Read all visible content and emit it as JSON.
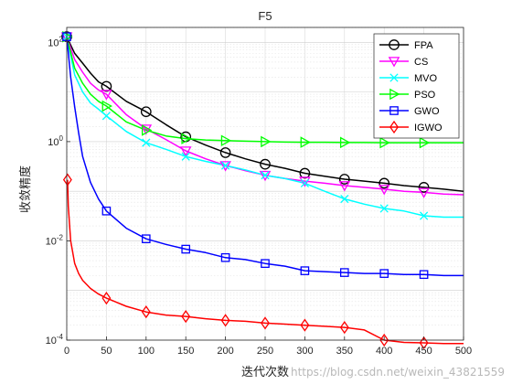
{
  "chart_data": {
    "type": "line",
    "title": "F5",
    "xlabel": "迭代次数",
    "ylabel": "收敛精度",
    "xlim": [
      0,
      500
    ],
    "ylim": [
      0.0001,
      200
    ],
    "yscale": "log",
    "grid": true,
    "legend_position": "top-right",
    "x_ticks": [
      "0",
      "50",
      "100",
      "150",
      "200",
      "250",
      "300",
      "350",
      "400",
      "450",
      "500"
    ],
    "y_ticks": [
      {
        "value": 100,
        "base": "10",
        "exp": "2"
      },
      {
        "value": 1,
        "base": "10",
        "exp": "0"
      },
      {
        "value": 0.01,
        "base": "10",
        "exp": "-2"
      },
      {
        "value": 0.0001,
        "base": "10",
        "exp": "-4"
      }
    ],
    "series": [
      {
        "name": "FPA",
        "color": "#000000",
        "marker": "circle",
        "x": [
          0,
          10,
          20,
          30,
          40,
          50,
          75,
          100,
          125,
          150,
          175,
          200,
          225,
          250,
          275,
          300,
          325,
          350,
          375,
          400,
          425,
          450,
          475,
          500
        ],
        "y": [
          130,
          60,
          38,
          24,
          16,
          13,
          6.5,
          4.0,
          2.2,
          1.25,
          0.85,
          0.6,
          0.45,
          0.35,
          0.29,
          0.23,
          0.2,
          0.175,
          0.16,
          0.145,
          0.13,
          0.12,
          0.11,
          0.1
        ]
      },
      {
        "name": "CS",
        "color": "#ff00ff",
        "marker": "triangle-down",
        "x": [
          0,
          10,
          20,
          30,
          40,
          50,
          75,
          100,
          125,
          150,
          175,
          200,
          225,
          250,
          275,
          300,
          325,
          350,
          375,
          400,
          425,
          450,
          475,
          500
        ],
        "y": [
          130,
          45,
          25,
          15,
          11,
          9,
          3.5,
          1.8,
          1.1,
          0.65,
          0.45,
          0.33,
          0.26,
          0.21,
          0.18,
          0.16,
          0.145,
          0.13,
          0.12,
          0.11,
          0.1,
          0.095,
          0.088,
          0.085
        ]
      },
      {
        "name": "MVO",
        "color": "#00ffff",
        "marker": "x",
        "x": [
          0,
          10,
          20,
          30,
          40,
          50,
          75,
          100,
          125,
          150,
          175,
          200,
          225,
          250,
          275,
          300,
          325,
          350,
          375,
          400,
          425,
          450,
          475,
          500
        ],
        "y": [
          130,
          22,
          10,
          6,
          4.5,
          3.3,
          1.6,
          0.95,
          0.7,
          0.5,
          0.4,
          0.33,
          0.27,
          0.21,
          0.18,
          0.145,
          0.1,
          0.07,
          0.055,
          0.045,
          0.04,
          0.032,
          0.03,
          0.03
        ]
      },
      {
        "name": "PSO",
        "color": "#00ff00",
        "marker": "triangle-right",
        "x": [
          0,
          10,
          20,
          30,
          40,
          50,
          75,
          100,
          125,
          150,
          175,
          200,
          225,
          250,
          275,
          300,
          325,
          350,
          375,
          400,
          425,
          450,
          475,
          500
        ],
        "y": [
          130,
          30,
          15,
          9,
          6.5,
          5.2,
          2.5,
          1.7,
          1.3,
          1.15,
          1.08,
          1.05,
          1.02,
          1.0,
          0.98,
          0.97,
          0.97,
          0.96,
          0.96,
          0.95,
          0.95,
          0.95,
          0.95,
          0.95
        ]
      },
      {
        "name": "GWO",
        "color": "#0000ff",
        "marker": "square",
        "x": [
          0,
          5,
          10,
          15,
          20,
          30,
          40,
          50,
          75,
          100,
          125,
          150,
          175,
          200,
          225,
          250,
          275,
          300,
          325,
          350,
          375,
          400,
          425,
          450,
          475,
          500
        ],
        "y": [
          130,
          20,
          5,
          1.5,
          0.5,
          0.15,
          0.07,
          0.04,
          0.018,
          0.011,
          0.0085,
          0.0068,
          0.0058,
          0.0046,
          0.0042,
          0.0035,
          0.0031,
          0.0025,
          0.0024,
          0.0023,
          0.0022,
          0.0022,
          0.0021,
          0.0021,
          0.002,
          0.002
        ]
      },
      {
        "name": "IGWO",
        "color": "#ff0000",
        "marker": "diamond",
        "x": [
          1,
          2,
          5,
          10,
          15,
          20,
          30,
          40,
          50,
          75,
          100,
          125,
          150,
          175,
          200,
          225,
          250,
          275,
          300,
          325,
          350,
          375,
          400,
          425,
          450,
          475,
          500
        ],
        "y": [
          0.17,
          0.05,
          0.01,
          0.0035,
          0.0022,
          0.0016,
          0.0011,
          0.00085,
          0.0007,
          0.00048,
          0.00037,
          0.00032,
          0.0003,
          0.00027,
          0.00025,
          0.00024,
          0.00022,
          0.00021,
          0.0002,
          0.00019,
          0.00018,
          0.00016,
          0.0001,
          9e-05,
          8.8e-05,
          8.5e-05,
          8.5e-05
        ]
      }
    ]
  },
  "watermark": "https://blog.csdn.net/weixin_43821559"
}
